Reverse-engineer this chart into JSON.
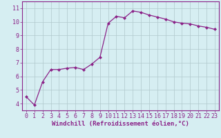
{
  "x": [
    0,
    1,
    2,
    3,
    4,
    5,
    6,
    7,
    8,
    9,
    10,
    11,
    12,
    13,
    14,
    15,
    16,
    17,
    18,
    19,
    20,
    21,
    22,
    23
  ],
  "y": [
    4.5,
    3.9,
    5.6,
    6.5,
    6.5,
    6.6,
    6.65,
    6.5,
    6.9,
    7.4,
    9.9,
    10.4,
    10.3,
    10.8,
    10.7,
    10.5,
    10.35,
    10.2,
    10.0,
    9.9,
    9.85,
    9.7,
    9.6,
    9.45
  ],
  "line_color": "#8b2288",
  "marker": "D",
  "marker_size": 2.0,
  "bg_color": "#d6eef2",
  "grid_color": "#b0c8cc",
  "xlabel": "Windchill (Refroidissement éolien,°C)",
  "xlabel_color": "#8b2288",
  "xlabel_fontsize": 6.5,
  "tick_color": "#8b2288",
  "tick_fontsize": 6.0,
  "ylim": [
    3.5,
    11.5
  ],
  "xlim": [
    -0.5,
    23.5
  ],
  "yticks": [
    4,
    5,
    6,
    7,
    8,
    9,
    10,
    11
  ],
  "xticks": [
    0,
    1,
    2,
    3,
    4,
    5,
    6,
    7,
    8,
    9,
    10,
    11,
    12,
    13,
    14,
    15,
    16,
    17,
    18,
    19,
    20,
    21,
    22,
    23
  ]
}
